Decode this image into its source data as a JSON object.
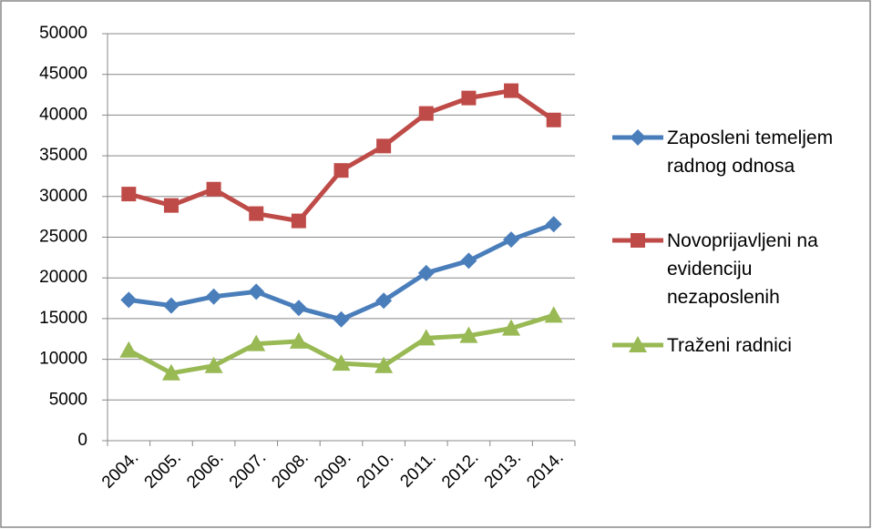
{
  "chart_data": {
    "type": "line",
    "categories": [
      "2004.",
      "2005.",
      "2006.",
      "2007.",
      "2008.",
      "2009.",
      "2010.",
      "2011.",
      "2012.",
      "2013.",
      "2014."
    ],
    "series": [
      {
        "name": "Zaposleni temeljem radnog odnosa",
        "color": "#4a7ebb",
        "marker": "diamond",
        "values": [
          17300,
          16600,
          17700,
          18300,
          16300,
          14900,
          17200,
          20600,
          22100,
          24700,
          26600
        ]
      },
      {
        "name": "Novoprijavljeni na evidenciju nezaposlenih",
        "color": "#be4b48",
        "marker": "square",
        "values": [
          30300,
          28900,
          30900,
          27900,
          27000,
          33200,
          36200,
          40200,
          42100,
          43000,
          39400
        ]
      },
      {
        "name": "Traženi radnici",
        "color": "#98b954",
        "marker": "triangle",
        "values": [
          11100,
          8300,
          9200,
          11900,
          12200,
          9500,
          9200,
          12600,
          12900,
          13800,
          15400
        ]
      }
    ],
    "ylim": [
      0,
      50000
    ],
    "yticks": [
      0,
      5000,
      10000,
      15000,
      20000,
      25000,
      30000,
      35000,
      40000,
      45000,
      50000
    ],
    "grid": true,
    "legend": "right"
  }
}
